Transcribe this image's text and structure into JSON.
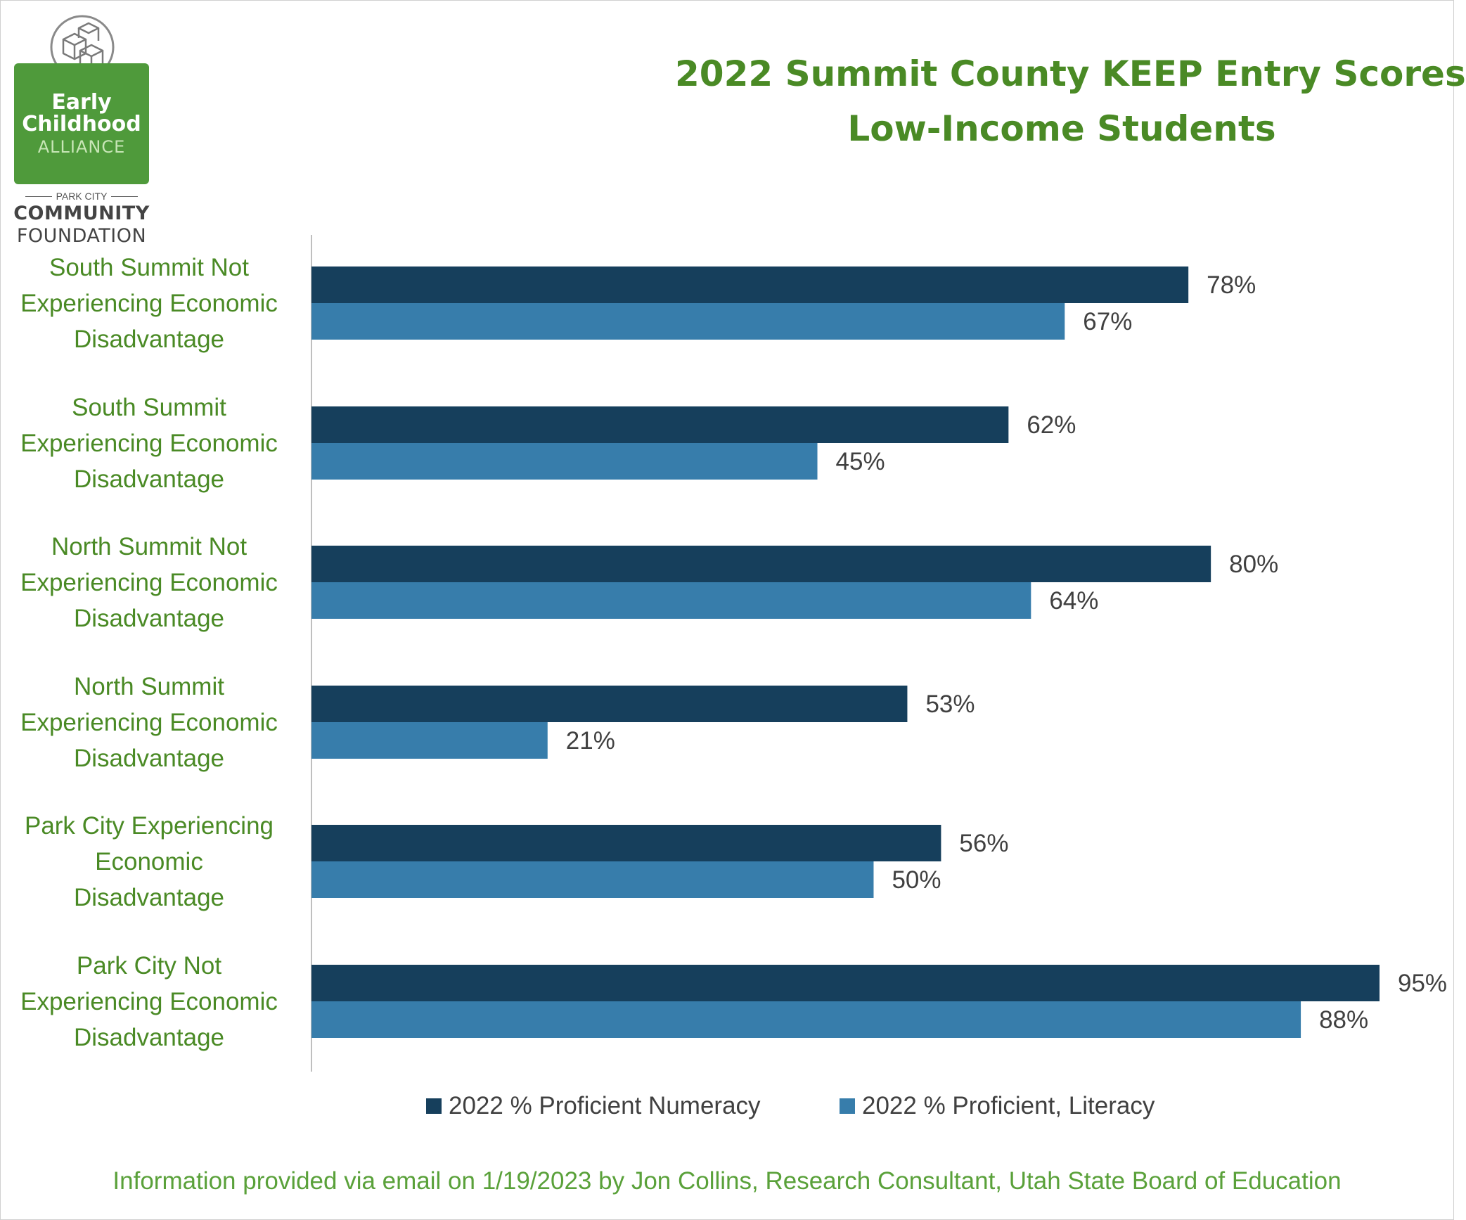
{
  "logo": {
    "line1": "Early",
    "line2": "Childhood",
    "line3": "ALLIANCE",
    "line4": "PARK CITY",
    "line5": "COMMUNITY",
    "line6": "FOUNDATION"
  },
  "footer": "Information provided via email on 1/19/2023 by Jon Collins, Research Consultant, Utah State Board of Education",
  "colors": {
    "numeracy": "#163f5c",
    "literacy": "#377dab",
    "label_green": "#4a8a25",
    "value_text": "#404040",
    "axis": "#bfbfbf"
  },
  "chart_data": {
    "type": "bar",
    "orientation": "horizontal",
    "title": "2022 Summit County KEEP Entry Scores",
    "subtitle": "Low-Income Students",
    "categories": [
      "South Summit Not Experiencing Economic Disadvantage",
      "South Summit Experiencing Economic Disadvantage",
      "North Summit Not Experiencing Economic Disadvantage",
      "North Summit Experiencing Economic Disadvantage",
      "Park City Experiencing Economic Disadvantage",
      "Park City Not Experiencing Economic Disadvantage"
    ],
    "category_lines": [
      [
        "South Summit Not",
        "Experiencing Economic",
        "Disadvantage"
      ],
      [
        "South Summit",
        "Experiencing Economic",
        "Disadvantage"
      ],
      [
        "North Summit Not",
        "Experiencing Economic",
        "Disadvantage"
      ],
      [
        "North Summit",
        "Experiencing Economic",
        "Disadvantage"
      ],
      [
        "Park City Experiencing",
        "Economic",
        "Disadvantage"
      ],
      [
        "Park City Not",
        "Experiencing Economic",
        "Disadvantage"
      ]
    ],
    "series": [
      {
        "name": "2022 % Proficient Numeracy",
        "values": [
          78,
          62,
          80,
          53,
          56,
          95
        ],
        "labels": [
          "78%",
          "62%",
          "80%",
          "53%",
          "56%",
          "95%"
        ]
      },
      {
        "name": "2022 % Proficient, Literacy",
        "values": [
          67,
          45,
          64,
          21,
          50,
          88
        ],
        "labels": [
          "67%",
          "45%",
          "64%",
          "21%",
          "50%",
          "88%"
        ]
      }
    ],
    "xlim": [
      0,
      95
    ],
    "legend_position": "bottom",
    "grid": false
  }
}
